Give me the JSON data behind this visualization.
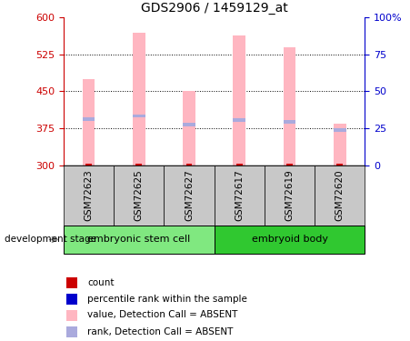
{
  "title": "GDS2906 / 1459129_at",
  "samples": [
    "GSM72623",
    "GSM72625",
    "GSM72627",
    "GSM72617",
    "GSM72619",
    "GSM72620"
  ],
  "group_labels": [
    "embryonic stem cell",
    "embryoid body"
  ],
  "bar_top_values": [
    475,
    568,
    451,
    562,
    538,
    385
  ],
  "rank_values": [
    393,
    400,
    382,
    392,
    388,
    372
  ],
  "bar_color": "#FFB6C1",
  "rank_color": "#AAAADD",
  "red_marker_color": "#CC0000",
  "ylim_left": [
    300,
    600
  ],
  "ylim_right": [
    0,
    100
  ],
  "yticks_left": [
    300,
    375,
    450,
    525,
    600
  ],
  "yticks_right": [
    0,
    25,
    50,
    75,
    100
  ],
  "left_tick_color": "#CC0000",
  "right_tick_color": "#0000CC",
  "label_area_color": "#C8C8C8",
  "group1_color": "#80E880",
  "group2_color": "#30C830",
  "legend_items": [
    {
      "label": "count",
      "color": "#CC0000"
    },
    {
      "label": "percentile rank within the sample",
      "color": "#0000CC"
    },
    {
      "label": "value, Detection Call = ABSENT",
      "color": "#FFB6C1"
    },
    {
      "label": "rank, Detection Call = ABSENT",
      "color": "#AAAADD"
    }
  ],
  "factor_label": "development stage",
  "bar_width": 0.25
}
